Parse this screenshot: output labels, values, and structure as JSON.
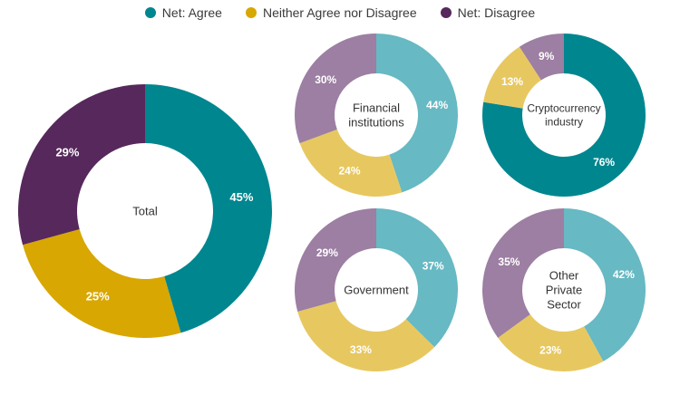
{
  "legend": [
    {
      "label": "Net: Agree",
      "color": "#00868f"
    },
    {
      "label": "Neither Agree nor Disagree",
      "color": "#d8a702"
    },
    {
      "label": "Net: Disagree",
      "color": "#57285c"
    }
  ],
  "chart_data": [
    {
      "type": "pie",
      "donut": true,
      "title": "Total",
      "center_lines": [
        "Total"
      ],
      "categories": [
        "Net: Agree",
        "Neither Agree nor Disagree",
        "Net: Disagree"
      ],
      "values": [
        45,
        25,
        29
      ],
      "value_labels": [
        "45%",
        "25%",
        "29%"
      ],
      "colors": [
        "#00868f",
        "#d8a702",
        "#57285c"
      ]
    },
    {
      "type": "pie",
      "donut": true,
      "title": "Financial institutions",
      "center_lines": [
        "Financial",
        "institutions"
      ],
      "categories": [
        "Net: Agree",
        "Neither Agree nor Disagree",
        "Net: Disagree"
      ],
      "values": [
        44,
        24,
        30
      ],
      "value_labels": [
        "44%",
        "24%",
        "30%"
      ],
      "colors": [
        "#67b9c3",
        "#e7c860",
        "#9c7fa2"
      ]
    },
    {
      "type": "pie",
      "donut": true,
      "title": "Cryptocurrency industry",
      "center_lines": [
        "Cryptocurrency",
        "industry"
      ],
      "categories": [
        "Net: Agree",
        "Neither Agree nor Disagree",
        "Net: Disagree"
      ],
      "values": [
        76,
        13,
        9
      ],
      "value_labels": [
        "76%",
        "13%",
        "9%"
      ],
      "colors": [
        "#00868f",
        "#e7c860",
        "#9c7fa2"
      ]
    },
    {
      "type": "pie",
      "donut": true,
      "title": "Government",
      "center_lines": [
        "Government"
      ],
      "categories": [
        "Net: Agree",
        "Neither Agree nor Disagree",
        "Net: Disagree"
      ],
      "values": [
        37,
        33,
        29
      ],
      "value_labels": [
        "37%",
        "33%",
        "29%"
      ],
      "colors": [
        "#67b9c3",
        "#e7c860",
        "#9c7fa2"
      ]
    },
    {
      "type": "pie",
      "donut": true,
      "title": "Other Private Sector",
      "center_lines": [
        "Other",
        "Private",
        "Sector"
      ],
      "categories": [
        "Net: Agree",
        "Neither Agree nor Disagree",
        "Net: Disagree"
      ],
      "values": [
        42,
        23,
        35
      ],
      "value_labels": [
        "42%",
        "23%",
        "35%"
      ],
      "colors": [
        "#67b9c3",
        "#e7c860",
        "#9c7fa2"
      ]
    }
  ]
}
